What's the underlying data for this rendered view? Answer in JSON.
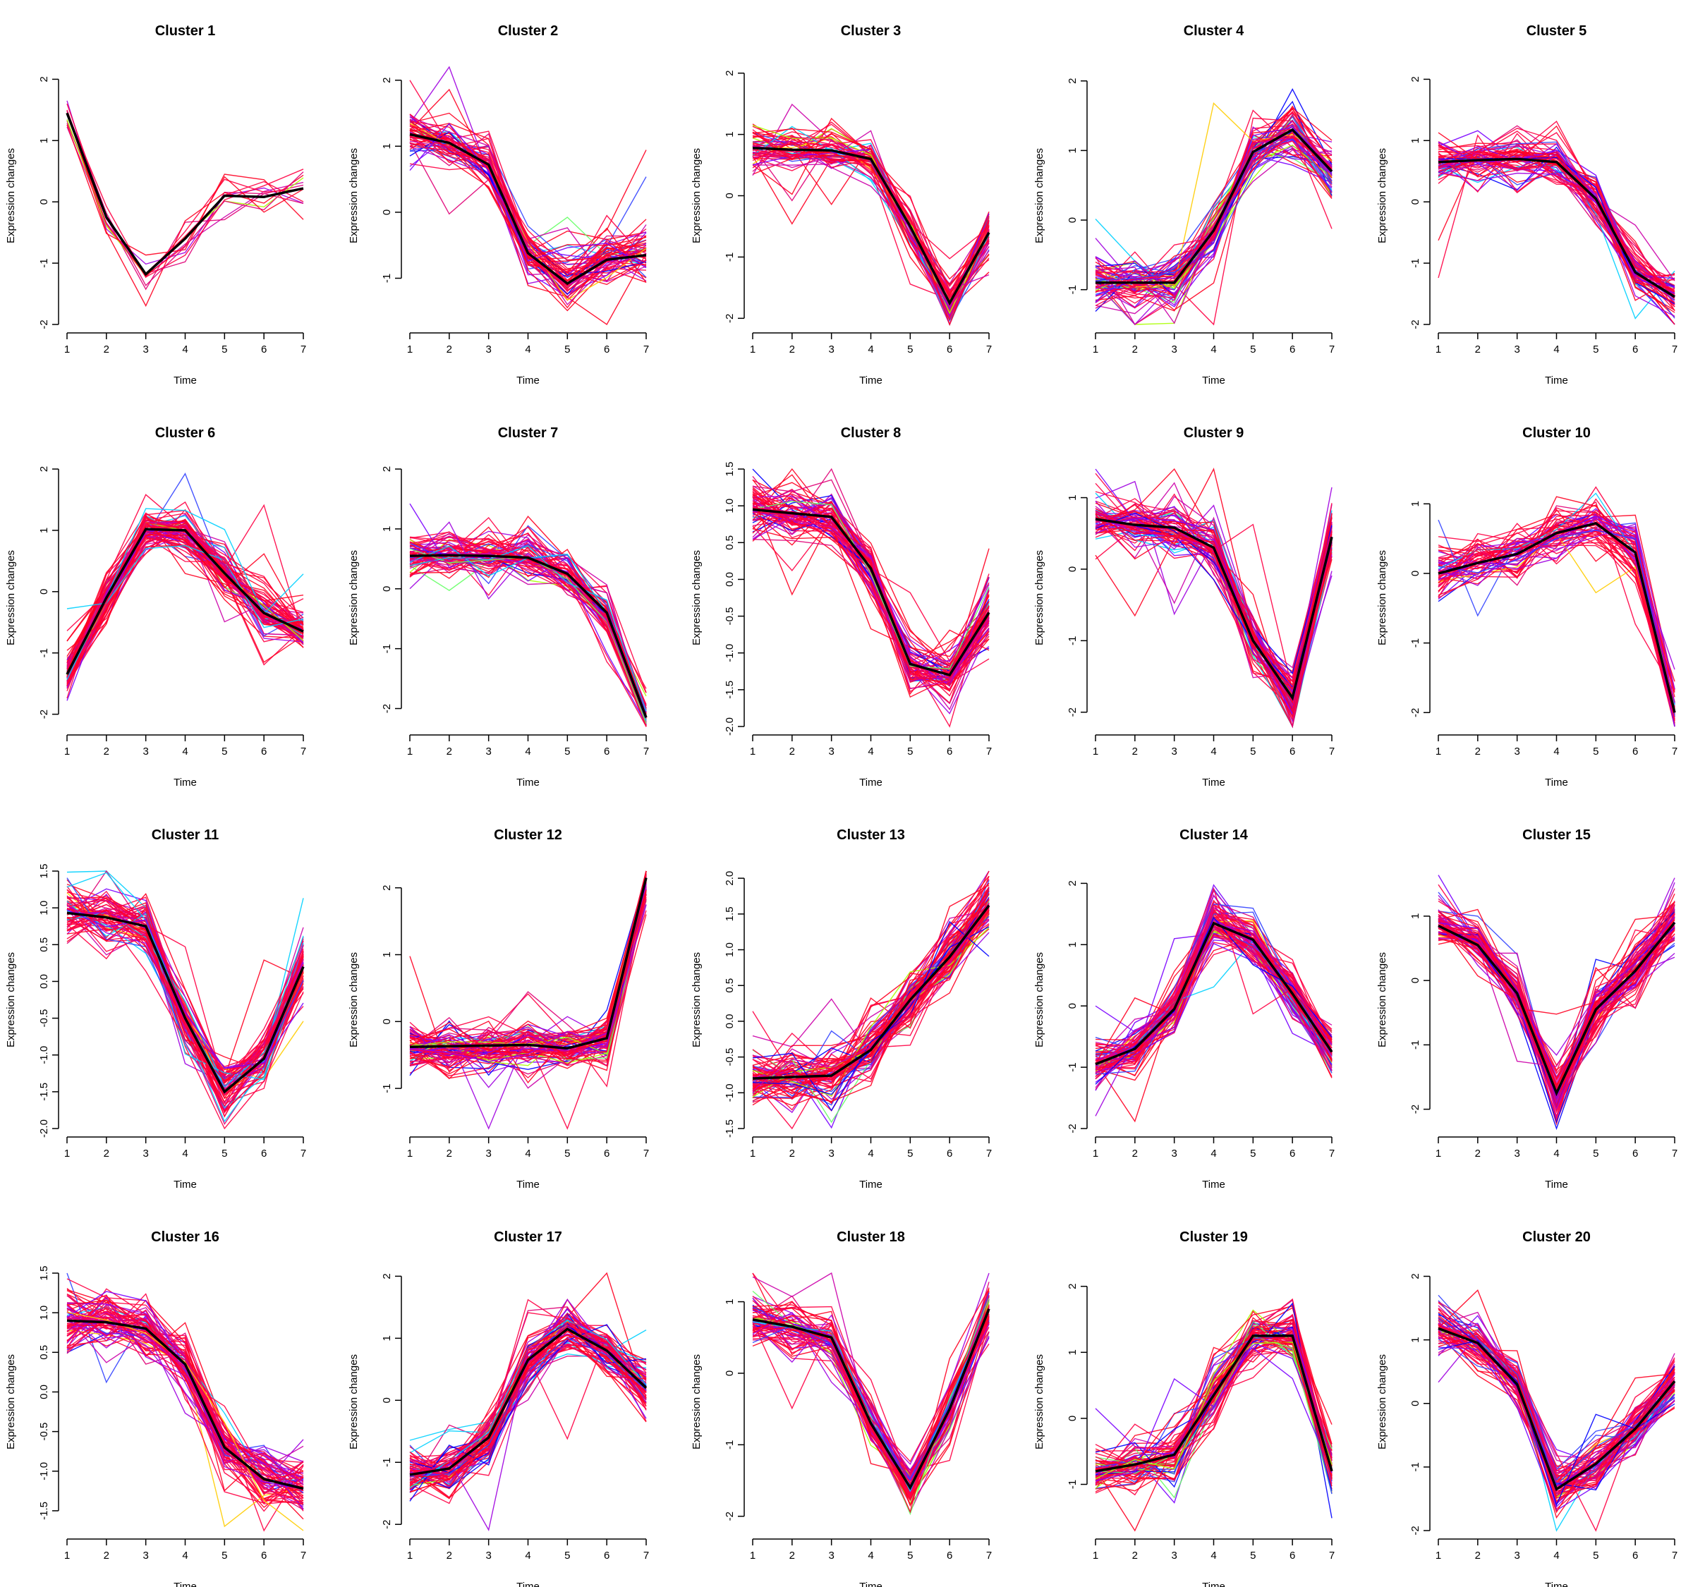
{
  "chart_data": [
    {
      "type": "line",
      "title": "Cluster 1",
      "xlabel": "Time",
      "ylabel": "Expression changes",
      "x": [
        1,
        2,
        3,
        4,
        5,
        6,
        7
      ],
      "yticks": [
        "-2",
        "-1",
        "0",
        "1",
        "2"
      ],
      "ylim": [
        -2,
        2.2
      ],
      "centroid": [
        1.45,
        -0.25,
        -1.18,
        -0.6,
        0.1,
        0.08,
        0.22
      ],
      "lines": 12
    },
    {
      "type": "line",
      "title": "Cluster 2",
      "xlabel": "Time",
      "ylabel": "Expression changes",
      "x": [
        1,
        2,
        3,
        4,
        5,
        6,
        7
      ],
      "yticks": [
        "-1",
        "0",
        "1",
        "2"
      ],
      "ylim": [
        -1.7,
        2.2
      ],
      "centroid": [
        1.18,
        1.05,
        0.72,
        -0.62,
        -1.08,
        -0.72,
        -0.65
      ],
      "lines": 60
    },
    {
      "type": "line",
      "title": "Cluster 3",
      "xlabel": "Time",
      "ylabel": "Expression changes",
      "x": [
        1,
        2,
        3,
        4,
        5,
        6,
        7
      ],
      "yticks": [
        "-2",
        "-1",
        "0",
        "1",
        "2"
      ],
      "ylim": [
        -2.1,
        2.1
      ],
      "centroid": [
        0.78,
        0.75,
        0.74,
        0.6,
        -0.5,
        -1.75,
        -0.6
      ],
      "lines": 60
    },
    {
      "type": "line",
      "title": "Cluster 4",
      "xlabel": "Time",
      "ylabel": "Expression changes",
      "x": [
        1,
        2,
        3,
        4,
        5,
        6,
        7
      ],
      "yticks": [
        "-1",
        "0",
        "1",
        "2"
      ],
      "ylim": [
        -1.5,
        2.2
      ],
      "centroid": [
        -0.9,
        -0.9,
        -0.9,
        -0.15,
        0.98,
        1.3,
        0.7
      ],
      "lines": 70
    },
    {
      "type": "line",
      "title": "Cluster 5",
      "xlabel": "Time",
      "ylabel": "Expression changes",
      "x": [
        1,
        2,
        3,
        4,
        5,
        6,
        7
      ],
      "yticks": [
        "-2",
        "-1",
        "0",
        "1",
        "2"
      ],
      "ylim": [
        -2,
        2.2
      ],
      "centroid": [
        0.65,
        0.68,
        0.7,
        0.65,
        0.05,
        -1.15,
        -1.55
      ],
      "lines": 60
    },
    {
      "type": "line",
      "title": "Cluster 6",
      "xlabel": "Time",
      "ylabel": "Expression changes",
      "x": [
        1,
        2,
        3,
        4,
        5,
        6,
        7
      ],
      "yticks": [
        "-2",
        "-1",
        "0",
        "1",
        "2"
      ],
      "ylim": [
        -2.2,
        2
      ],
      "centroid": [
        -1.35,
        -0.1,
        1.02,
        1.0,
        0.3,
        -0.35,
        -0.65
      ],
      "lines": 80
    },
    {
      "type": "line",
      "title": "Cluster 7",
      "xlabel": "Time",
      "ylabel": "Expression changes",
      "x": [
        1,
        2,
        3,
        4,
        5,
        6,
        7
      ],
      "yticks": [
        "-2",
        "-1",
        "0",
        "1",
        "2"
      ],
      "ylim": [
        -2.3,
        2
      ],
      "centroid": [
        0.55,
        0.56,
        0.55,
        0.52,
        0.25,
        -0.4,
        -2.15
      ],
      "lines": 70
    },
    {
      "type": "line",
      "title": "Cluster 8",
      "xlabel": "Time",
      "ylabel": "Expression changes",
      "x": [
        1,
        2,
        3,
        4,
        5,
        6,
        7
      ],
      "yticks": [
        "-2.0",
        "-1.5",
        "-1.0",
        "-0.5",
        "0.0",
        "0.5",
        "1.0",
        "1.5"
      ],
      "ylim": [
        -2,
        1.5
      ],
      "centroid": [
        0.95,
        0.9,
        0.85,
        0.15,
        -1.15,
        -1.3,
        -0.45
      ],
      "lines": 70
    },
    {
      "type": "line",
      "title": "Cluster 9",
      "xlabel": "Time",
      "ylabel": "Expression changes",
      "x": [
        1,
        2,
        3,
        4,
        5,
        6,
        7
      ],
      "yticks": [
        "-2",
        "-1",
        "0",
        "1"
      ],
      "ylim": [
        -2.2,
        1.4
      ],
      "centroid": [
        0.7,
        0.62,
        0.58,
        0.3,
        -1.0,
        -1.8,
        0.45
      ],
      "lines": 70
    },
    {
      "type": "line",
      "title": "Cluster 10",
      "xlabel": "Time",
      "ylabel": "Expression changes",
      "x": [
        1,
        2,
        3,
        4,
        5,
        6,
        7
      ],
      "yticks": [
        "-2",
        "-1",
        "0",
        "1"
      ],
      "ylim": [
        -2.2,
        1.5
      ],
      "centroid": [
        0.0,
        0.15,
        0.28,
        0.58,
        0.72,
        0.3,
        -2.0
      ],
      "lines": 55
    },
    {
      "type": "line",
      "title": "Cluster 11",
      "xlabel": "Time",
      "ylabel": "Expression changes",
      "x": [
        1,
        2,
        3,
        4,
        5,
        6,
        7
      ],
      "yticks": [
        "-2.0",
        "-1.5",
        "-1.0",
        "-0.5",
        "0.0",
        "0.5",
        "1.0",
        "1.5"
      ],
      "ylim": [
        -2,
        1.5
      ],
      "centroid": [
        0.93,
        0.87,
        0.75,
        -0.5,
        -1.5,
        -1.05,
        0.2
      ],
      "lines": 70
    },
    {
      "type": "line",
      "title": "Cluster 12",
      "xlabel": "Time",
      "ylabel": "Expression changes",
      "x": [
        1,
        2,
        3,
        4,
        5,
        6,
        7
      ],
      "yticks": [
        "-1",
        "0",
        "1",
        "2"
      ],
      "ylim": [
        -1.6,
        2.25
      ],
      "centroid": [
        -0.38,
        -0.37,
        -0.36,
        -0.35,
        -0.4,
        -0.25,
        2.15
      ],
      "lines": 80
    },
    {
      "type": "line",
      "title": "Cluster 13",
      "xlabel": "Time",
      "ylabel": "Expression changes",
      "x": [
        1,
        2,
        3,
        4,
        5,
        6,
        7
      ],
      "yticks": [
        "-1.5",
        "-1.0",
        "-0.5",
        "0.0",
        "0.5",
        "1.0",
        "1.5",
        "2.0"
      ],
      "ylim": [
        -1.5,
        2.1
      ],
      "centroid": [
        -0.8,
        -0.78,
        -0.76,
        -0.4,
        0.3,
        0.9,
        1.62
      ],
      "lines": 80
    },
    {
      "type": "line",
      "title": "Cluster 14",
      "xlabel": "Time",
      "ylabel": "Expression changes",
      "x": [
        1,
        2,
        3,
        4,
        5,
        6,
        7
      ],
      "yticks": [
        "-2",
        "-1",
        "0",
        "1",
        "2"
      ],
      "ylim": [
        -2,
        2.2
      ],
      "centroid": [
        -0.95,
        -0.7,
        -0.05,
        1.35,
        1.08,
        0.2,
        -0.75
      ],
      "lines": 80
    },
    {
      "type": "line",
      "title": "Cluster 15",
      "xlabel": "Time",
      "ylabel": "Expression changes",
      "x": [
        1,
        2,
        3,
        4,
        5,
        6,
        7
      ],
      "yticks": [
        "-2",
        "-1",
        "0",
        "1"
      ],
      "ylim": [
        -2.3,
        1.7
      ],
      "centroid": [
        0.85,
        0.55,
        -0.2,
        -1.75,
        -0.45,
        0.15,
        0.9
      ],
      "lines": 70
    },
    {
      "type": "line",
      "title": "Cluster 16",
      "xlabel": "Time",
      "ylabel": "Expression changes",
      "x": [
        1,
        2,
        3,
        4,
        5,
        6,
        7
      ],
      "yticks": [
        "-1.5",
        "-1.0",
        "-0.5",
        "0.0",
        "0.5",
        "1.0",
        "1.5"
      ],
      "ylim": [
        -1.75,
        1.5
      ],
      "centroid": [
        0.9,
        0.88,
        0.8,
        0.35,
        -0.7,
        -1.1,
        -1.22
      ],
      "lines": 70
    },
    {
      "type": "line",
      "title": "Cluster 17",
      "xlabel": "Time",
      "ylabel": "Expression changes",
      "x": [
        1,
        2,
        3,
        4,
        5,
        6,
        7
      ],
      "yticks": [
        "-2",
        "-1",
        "0",
        "1",
        "2"
      ],
      "ylim": [
        -2.1,
        2.05
      ],
      "centroid": [
        -1.2,
        -1.1,
        -0.6,
        0.65,
        1.15,
        0.8,
        0.2
      ],
      "lines": 80
    },
    {
      "type": "line",
      "title": "Cluster 18",
      "xlabel": "Time",
      "ylabel": "Expression changes",
      "x": [
        1,
        2,
        3,
        4,
        5,
        6,
        7
      ],
      "yticks": [
        "-2",
        "-1",
        "0",
        "1"
      ],
      "ylim": [
        -2.2,
        1.4
      ],
      "centroid": [
        0.75,
        0.65,
        0.5,
        -0.7,
        -1.6,
        -0.5,
        0.9
      ],
      "lines": 70
    },
    {
      "type": "line",
      "title": "Cluster 19",
      "xlabel": "Time",
      "ylabel": "Expression changes",
      "x": [
        1,
        2,
        3,
        4,
        5,
        6,
        7
      ],
      "yticks": [
        "-1",
        "0",
        "1",
        "2"
      ],
      "ylim": [
        -1.7,
        2.2
      ],
      "centroid": [
        -0.8,
        -0.7,
        -0.55,
        0.35,
        1.25,
        1.25,
        -0.8
      ],
      "lines": 70
    },
    {
      "type": "line",
      "title": "Cluster 20",
      "xlabel": "Time",
      "ylabel": "Expression changes",
      "x": [
        1,
        2,
        3,
        4,
        5,
        6,
        7
      ],
      "yticks": [
        "-2",
        "-1",
        "0",
        "1",
        "2"
      ],
      "ylim": [
        -2,
        2.05
      ],
      "centroid": [
        1.18,
        0.95,
        0.3,
        -1.35,
        -0.95,
        -0.4,
        0.35
      ],
      "lines": 70
    }
  ],
  "palette": [
    "#0000ff",
    "#3344ff",
    "#7a00ff",
    "#a000e0",
    "#cc00aa",
    "#e00077",
    "#ff0044",
    "#ff0022",
    "#00d0ff",
    "#66ff66",
    "#aaff00",
    "#ffcc00"
  ],
  "centroid_color": "#000000"
}
